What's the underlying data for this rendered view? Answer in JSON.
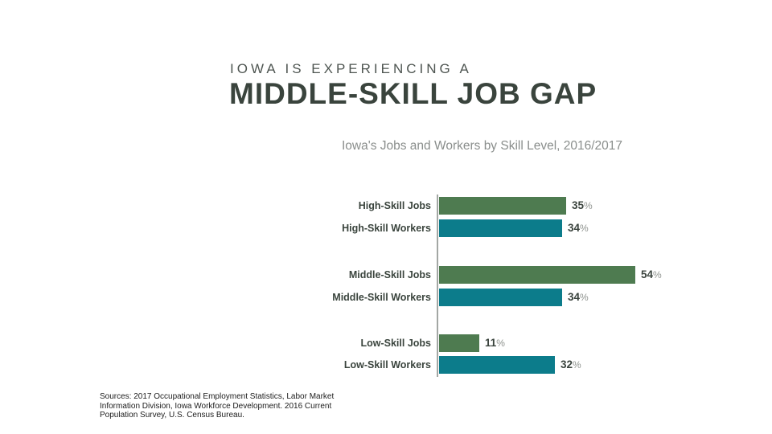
{
  "header": {
    "eyebrow": "IOWA IS EXPERIENCING A",
    "title": "MIDDLE-SKILL JOB GAP",
    "subtitle": "Iowa's Jobs and Workers by Skill Level, 2016/2017"
  },
  "chart_data": {
    "type": "bar",
    "orientation": "horizontal",
    "title": "Iowa's Jobs and Workers by Skill Level, 2016/2017",
    "unit": "%",
    "xlim": [
      0,
      60
    ],
    "grid": false,
    "legend": "none",
    "axis_line_color": "#A3A7A4",
    "groups": [
      "High-Skill",
      "Middle-Skill",
      "Low-Skill"
    ],
    "categories": [
      "High-Skill Jobs",
      "High-Skill Workers",
      "Middle-Skill Jobs",
      "Middle-Skill Workers",
      "Low-Skill Jobs",
      "Low-Skill Workers"
    ],
    "values": [
      35,
      34,
      54,
      34,
      11,
      32
    ],
    "value_labels": [
      "35%",
      "34%",
      "54%",
      "34%",
      "11%",
      "32%"
    ],
    "percent_sign": "%",
    "series": [
      {
        "name": "Jobs",
        "color": "#4E7B50",
        "values": [
          35,
          54,
          11
        ]
      },
      {
        "name": "Workers",
        "color": "#0C7C8B",
        "values": [
          34,
          34,
          32
        ]
      }
    ],
    "colors": {
      "Jobs": "#4E7B50",
      "Workers": "#0C7C8B"
    },
    "rows": [
      {
        "label": "High-Skill Jobs",
        "series": "Jobs",
        "value": 35,
        "display": "35"
      },
      {
        "label": "High-Skill Workers",
        "series": "Workers",
        "value": 34,
        "display": "34"
      },
      {
        "label": "Middle-Skill Jobs",
        "series": "Jobs",
        "value": 54,
        "display": "54"
      },
      {
        "label": "Middle-Skill Workers",
        "series": "Workers",
        "value": 34,
        "display": "34"
      },
      {
        "label": "Low-Skill Jobs",
        "series": "Jobs",
        "value": 11,
        "display": "11"
      },
      {
        "label": "Low-Skill Workers",
        "series": "Workers",
        "value": 32,
        "display": "32"
      }
    ]
  },
  "footer": {
    "sources_lines": [
      "Sources: 2017 Occupational Employment Statistics, Labor Market",
      "Information Division, Iowa Workforce Development. 2016 Current",
      "Population Survey, U.S. Census Bureau."
    ]
  },
  "colors": {
    "background": "#FFFFFF",
    "title_text": "#3A443D",
    "eyebrow_text": "#4E5551",
    "subtitle_text": "#8A8E8C",
    "label_text": "#3A443D",
    "percent_sign_text": "#8F938F",
    "jobs_bar": "#4E7B50",
    "workers_bar": "#0C7C8B"
  }
}
